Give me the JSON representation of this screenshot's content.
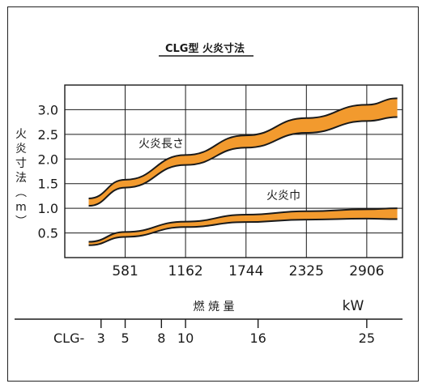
{
  "chart_data": {
    "type": "area",
    "title": "CLG型 火炎寸法",
    "ylabel": "火炎寸法（m）",
    "xlabel": "燃 焼 量",
    "xunit": "kW",
    "x_ticks": [
      581,
      1162,
      1744,
      2325,
      2906
    ],
    "y_ticks": [
      0.5,
      1.0,
      1.5,
      2.0,
      2.5,
      3.0
    ],
    "xlim": [
      0,
      3250
    ],
    "ylim": [
      0,
      3.5
    ],
    "fill_color": "#f29a2e",
    "series": [
      {
        "name": "火炎長さ",
        "x": [
          230,
          581,
          1162,
          1744,
          2325,
          2906,
          3200
        ],
        "lower": [
          1.05,
          1.42,
          1.88,
          2.23,
          2.53,
          2.77,
          2.85
        ],
        "upper": [
          1.2,
          1.58,
          2.08,
          2.48,
          2.83,
          3.1,
          3.23
        ]
      },
      {
        "name": "火炎巾",
        "x": [
          230,
          581,
          1162,
          1744,
          2325,
          2906,
          3200
        ],
        "lower": [
          0.25,
          0.42,
          0.62,
          0.72,
          0.77,
          0.79,
          0.78
        ],
        "upper": [
          0.32,
          0.52,
          0.73,
          0.87,
          0.94,
          0.98,
          1.0
        ]
      }
    ],
    "model_scale": {
      "prefix": "CLG-",
      "models": [
        {
          "label": "3",
          "kw": 349
        },
        {
          "label": "5",
          "kw": 581
        },
        {
          "label": "8",
          "kw": 930
        },
        {
          "label": "10",
          "kw": 1162
        },
        {
          "label": "16",
          "kw": 1860
        },
        {
          "label": "25",
          "kw": 2906
        }
      ]
    },
    "grid": true
  }
}
